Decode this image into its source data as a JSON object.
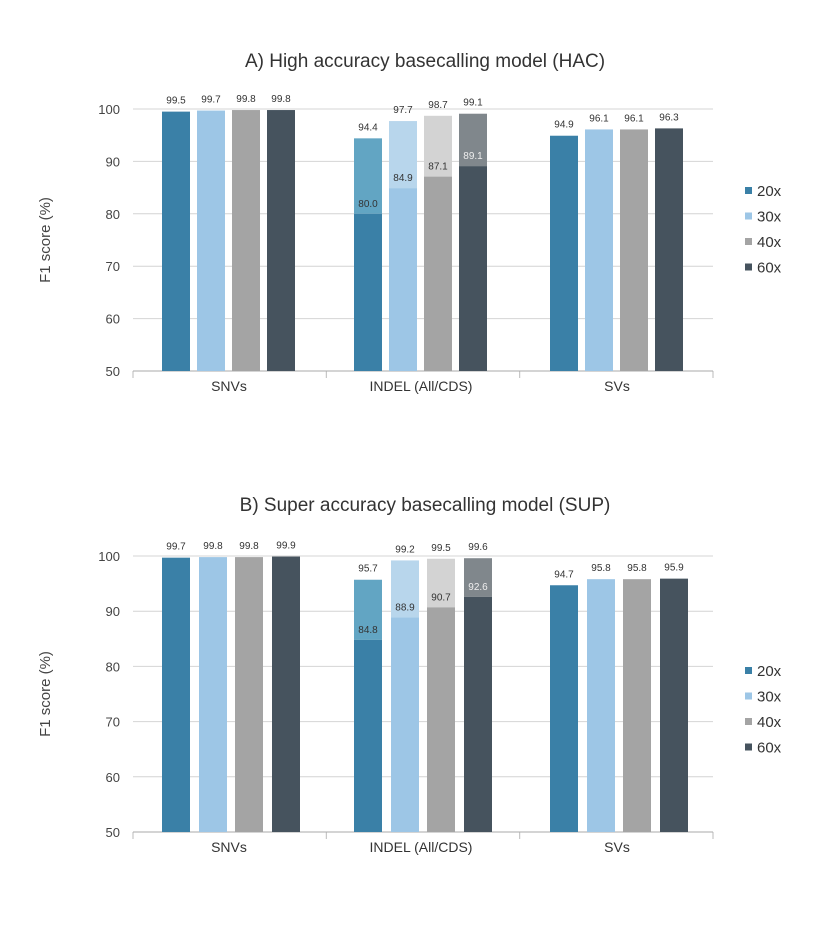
{
  "chart_data": [
    {
      "type": "bar",
      "title": "A) High accuracy basecalling model (HAC)",
      "ylabel": "F1 score (%)",
      "xlabel": "",
      "ylim": [
        50,
        100
      ],
      "yticks": [
        50,
        60,
        70,
        80,
        90,
        100
      ],
      "grid": true,
      "legend": "right",
      "categories": [
        "SNVs",
        "INDEL (All/CDS)",
        "SVs"
      ],
      "series": [
        {
          "name": "20x",
          "values": [
            99.5,
            94.4,
            94.9
          ],
          "cds_values": [
            null,
            80.0,
            null
          ]
        },
        {
          "name": "30x",
          "values": [
            99.7,
            97.7,
            96.1
          ],
          "cds_values": [
            null,
            84.9,
            null
          ]
        },
        {
          "name": "40x",
          "values": [
            99.8,
            98.7,
            96.1
          ],
          "cds_values": [
            null,
            87.1,
            null
          ]
        },
        {
          "name": "60x",
          "values": [
            99.8,
            99.1,
            96.3
          ],
          "cds_values": [
            null,
            89.1,
            null
          ]
        }
      ]
    },
    {
      "type": "bar",
      "title": "B) Super accuracy basecalling model (SUP)",
      "ylabel": "F1  score (%)",
      "xlabel": "",
      "ylim": [
        50,
        100
      ],
      "yticks": [
        50,
        60,
        70,
        80,
        90,
        100
      ],
      "grid": true,
      "legend": "right",
      "categories": [
        "SNVs",
        "INDEL (All/CDS)",
        "SVs"
      ],
      "series": [
        {
          "name": "20x",
          "values": [
            99.7,
            95.7,
            94.7
          ],
          "cds_values": [
            null,
            84.8,
            null
          ]
        },
        {
          "name": "30x",
          "values": [
            99.8,
            99.2,
            95.8
          ],
          "cds_values": [
            null,
            88.9,
            null
          ]
        },
        {
          "name": "40x",
          "values": [
            99.8,
            99.5,
            95.8
          ],
          "cds_values": [
            null,
            90.7,
            null
          ]
        },
        {
          "name": "60x",
          "values": [
            99.9,
            99.6,
            95.9
          ],
          "cds_values": [
            null,
            92.6,
            null
          ]
        }
      ]
    }
  ],
  "colors": {
    "dark": [
      "#3a80a7",
      "#9dc6e6",
      "#a4a4a4",
      "#46535e"
    ],
    "light": [
      "#62a5c3",
      "#b8d6ec",
      "#d3d3d3",
      "#80878c"
    ]
  }
}
